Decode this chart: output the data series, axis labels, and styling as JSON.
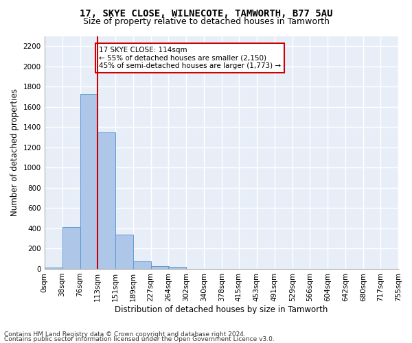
{
  "title1": "17, SKYE CLOSE, WILNECOTE, TAMWORTH, B77 5AU",
  "title2": "Size of property relative to detached houses in Tamworth",
  "xlabel": "Distribution of detached houses by size in Tamworth",
  "ylabel": "Number of detached properties",
  "bin_labels": [
    "0sqm",
    "38sqm",
    "76sqm",
    "113sqm",
    "151sqm",
    "189sqm",
    "227sqm",
    "264sqm",
    "302sqm",
    "340sqm",
    "378sqm",
    "415sqm",
    "453sqm",
    "491sqm",
    "529sqm",
    "566sqm",
    "604sqm",
    "642sqm",
    "680sqm",
    "717sqm",
    "755sqm"
  ],
  "bin_edges": [
    0,
    38,
    76,
    113,
    151,
    189,
    227,
    264,
    302,
    340,
    378,
    415,
    453,
    491,
    529,
    566,
    604,
    642,
    680,
    717,
    755
  ],
  "bar_heights": [
    15,
    415,
    1730,
    1345,
    340,
    75,
    30,
    20,
    0,
    0,
    0,
    0,
    0,
    0,
    0,
    0,
    0,
    0,
    0,
    0
  ],
  "bar_color": "#aec6e8",
  "bar_edge_color": "#5b9bd5",
  "vline_x": 113,
  "vline_color": "#cc0000",
  "annotation_line1": "17 SKYE CLOSE: 114sqm",
  "annotation_line2": "← 55% of detached houses are smaller (2,150)",
  "annotation_line3": "45% of semi-detached houses are larger (1,773) →",
  "annotation_box_color": "#ffffff",
  "annotation_box_edge": "#cc0000",
  "ylim_max": 2300,
  "yticks": [
    0,
    200,
    400,
    600,
    800,
    1000,
    1200,
    1400,
    1600,
    1800,
    2000,
    2200
  ],
  "footer1": "Contains HM Land Registry data © Crown copyright and database right 2024.",
  "footer2": "Contains public sector information licensed under the Open Government Licence v3.0.",
  "bg_color": "#e8eef8",
  "fig_bg_color": "#ffffff",
  "grid_color": "#ffffff",
  "title1_fontsize": 10,
  "title2_fontsize": 9,
  "xlabel_fontsize": 8.5,
  "ylabel_fontsize": 8.5,
  "tick_fontsize": 7.5,
  "annot_fontsize": 7.5,
  "footer_fontsize": 6.5
}
